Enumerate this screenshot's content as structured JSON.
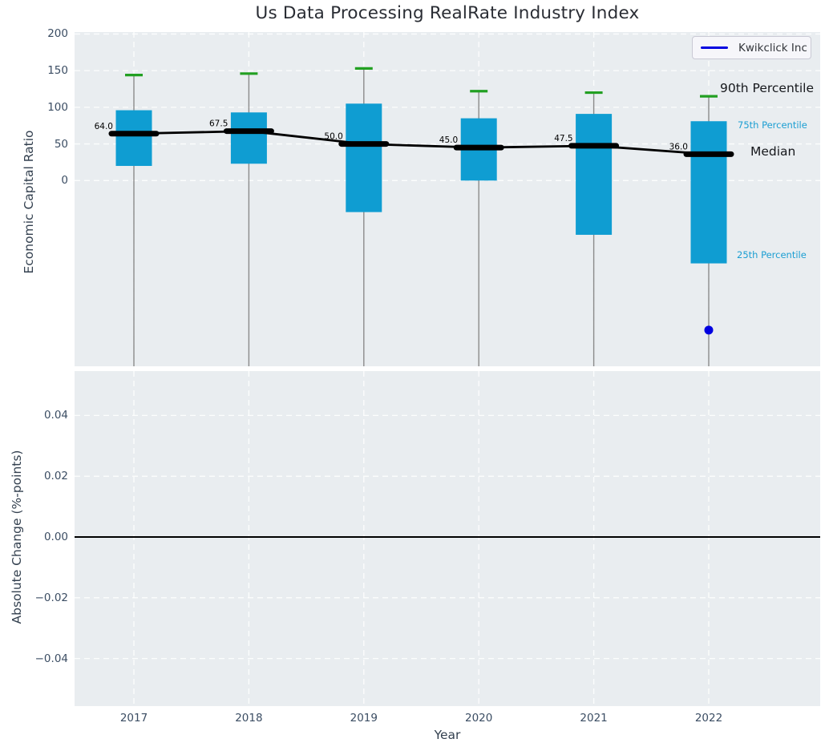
{
  "chart_data": {
    "type": "boxplot",
    "title": "Us Data Processing RealRate Industry Index",
    "xlabel": "Year",
    "categories": [
      "2017",
      "2018",
      "2019",
      "2020",
      "2021",
      "2022"
    ],
    "legend": {
      "position": "upper right",
      "entries": [
        {
          "label": "Kwikclick Inc",
          "color": "#0000e0"
        }
      ]
    },
    "top_panel": {
      "ylabel": "Economic Capital Ratio",
      "ylim_visible": [
        -255,
        228
      ],
      "grid": "white dashed",
      "yticks": [
        {
          "value": 200,
          "label": "200"
        },
        {
          "value": 150,
          "label": "150"
        },
        {
          "value": 100,
          "label": "100"
        },
        {
          "value": 50,
          "label": "50"
        },
        {
          "value": 0,
          "label": "0"
        }
      ],
      "boxes": [
        {
          "year": "2017",
          "median": 64.0,
          "median_label": "64.0",
          "q1": 20,
          "q3": 96,
          "p90": 144,
          "whisker_low_clipped": true
        },
        {
          "year": "2018",
          "median": 67.5,
          "median_label": "67.5",
          "q1": 23,
          "q3": 93,
          "p90": 146,
          "whisker_low_clipped": true
        },
        {
          "year": "2019",
          "median": 50.0,
          "median_label": "50.0",
          "q1": -43,
          "q3": 105,
          "p90": 153,
          "whisker_low_clipped": true
        },
        {
          "year": "2020",
          "median": 45.0,
          "median_label": "45.0",
          "q1": 0,
          "q3": 85,
          "p90": 122,
          "whisker_low_clipped": true
        },
        {
          "year": "2021",
          "median": 47.5,
          "median_label": "47.5",
          "q1": -74,
          "q3": 91,
          "p90": 120,
          "whisker_low_clipped": true
        },
        {
          "year": "2022",
          "median": 36.0,
          "median_label": "36.0",
          "q1": -113,
          "q3": 81,
          "p90": 115,
          "whisker_low_clipped": true
        }
      ],
      "company_point": {
        "series": "Kwikclick Inc",
        "year": "2022",
        "value": -204
      },
      "annotations": [
        {
          "text": "90th Percentile",
          "style": "big"
        },
        {
          "text": "75th Percentile",
          "style": "small"
        },
        {
          "text": "Median",
          "style": "big"
        },
        {
          "text": "25th Percentile",
          "style": "small"
        }
      ]
    },
    "bottom_panel": {
      "ylabel": "Absolute Change (%-points)",
      "grid": "white dashed",
      "yticks": [
        {
          "value": 0.04,
          "label": "0.04"
        },
        {
          "value": 0.02,
          "label": "0.02"
        },
        {
          "value": 0.0,
          "label": "0.00"
        },
        {
          "value": -0.02,
          "label": "−0.02"
        },
        {
          "value": -0.04,
          "label": "−0.04"
        }
      ],
      "zero_line_value": 0,
      "series": []
    },
    "colors": {
      "box_fill": "#0f9dd2",
      "percentile_cap": "#22a022",
      "whisker": "#8a8a8a",
      "median_line": "#000000",
      "company_point": "#0000e0",
      "percentile_text": "#1b9ed2",
      "plot_bg": "#e9edf0",
      "grid": "#ffffff",
      "tick_text": "#3b4d63",
      "title_text": "#2a2d34"
    }
  }
}
